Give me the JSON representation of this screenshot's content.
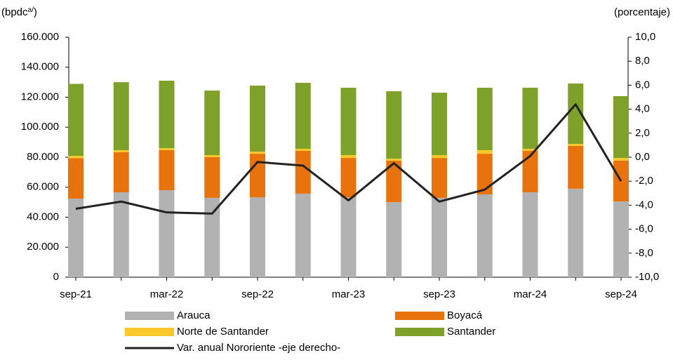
{
  "chart_data": {
    "type": "bar",
    "stacked": true,
    "ylabel": "(bpdc",
    "ylabel_sup": "a/",
    "ylabel_end": ")",
    "y2label": "(porcentaje)",
    "categories": [
      "sep-21",
      null,
      "mar-22",
      null,
      "sep-22",
      null,
      "mar-23",
      null,
      "sep-23",
      null,
      "mar-24",
      null,
      "sep-24"
    ],
    "ylim": [
      0,
      160000
    ],
    "yticks": [
      {
        "value": 0,
        "label": "0"
      },
      {
        "value": 20000,
        "label": "20.000"
      },
      {
        "value": 40000,
        "label": "40.000"
      },
      {
        "value": 60000,
        "label": "60.000"
      },
      {
        "value": 80000,
        "label": "80.000"
      },
      {
        "value": 100000,
        "label": "100.000"
      },
      {
        "value": 120000,
        "label": "120.000"
      },
      {
        "value": 140000,
        "label": "140.000"
      },
      {
        "value": 160000,
        "label": "160.000"
      }
    ],
    "y2lim": [
      -10,
      10
    ],
    "y2ticks": [
      {
        "value": -10,
        "label": "-10,0"
      },
      {
        "value": -8,
        "label": "-8,0"
      },
      {
        "value": -6,
        "label": "-6,0"
      },
      {
        "value": -4,
        "label": "-4,0"
      },
      {
        "value": -2,
        "label": "-2,0"
      },
      {
        "value": 0,
        "label": "0,0"
      },
      {
        "value": 2,
        "label": "2,0"
      },
      {
        "value": 4,
        "label": "4,0"
      },
      {
        "value": 6,
        "label": "6,0"
      },
      {
        "value": 8,
        "label": "8,0"
      },
      {
        "value": 10,
        "label": "10,0"
      }
    ],
    "series": [
      {
        "name": "Arauca",
        "color": "#b2b2b2",
        "values": [
          52400,
          56600,
          58000,
          52900,
          53300,
          55700,
          53300,
          50000,
          52900,
          55200,
          56600,
          59000,
          50500
        ]
      },
      {
        "name": "Boyacá",
        "color": "#e8730c",
        "values": [
          27000,
          26700,
          26700,
          27100,
          29000,
          28500,
          26200,
          27700,
          26600,
          27100,
          27600,
          28500,
          27200
        ]
      },
      {
        "name": "Norte de Santander",
        "color": "#f9c92a",
        "values": [
          1500,
          1400,
          1300,
          1400,
          1400,
          1400,
          1900,
          1300,
          1900,
          2400,
          1400,
          1400,
          1800
        ]
      },
      {
        "name": "Santander",
        "color": "#7ea12a",
        "values": [
          48000,
          45300,
          45000,
          43000,
          44000,
          44000,
          44900,
          45000,
          41600,
          41600,
          40700,
          40200,
          41200
        ]
      },
      {
        "name": "Var. anual Nororiente -eje derecho-",
        "type": "line",
        "axis": "y2",
        "color": "#222222",
        "values": [
          -4.3,
          -3.7,
          -4.6,
          -4.7,
          -0.4,
          -0.7,
          -3.6,
          -0.5,
          -3.7,
          -2.7,
          0.1,
          4.4,
          -2.0
        ]
      }
    ]
  }
}
